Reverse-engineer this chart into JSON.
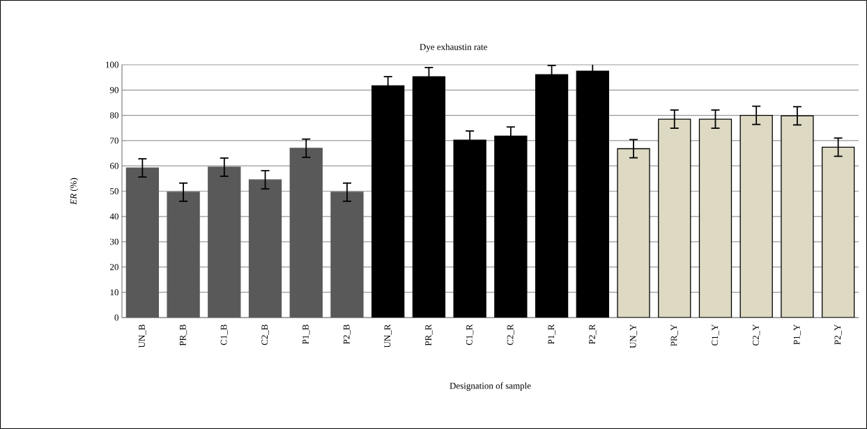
{
  "chart_data": {
    "type": "bar",
    "title": "Dye exhaustin rate",
    "xlabel": "Designation of sample",
    "ylabel": "*ER* (%)",
    "categories": [
      "UN_B",
      "PR_B",
      "C1_B",
      "C2_B",
      "P1_B",
      "P2_B",
      "UN_R",
      "PR_R",
      "C1_R",
      "C2_R",
      "P1_R",
      "P2_R",
      "UN_Y",
      "PR_Y",
      "C1_Y",
      "C2_Y",
      "P1_Y",
      "P2_Y"
    ],
    "values": [
      59.2,
      49.6,
      59.5,
      54.5,
      67,
      49.6,
      91.7,
      95.3,
      70.2,
      71.8,
      96.1,
      97.5,
      66.8,
      78.5,
      78.5,
      80,
      79.8,
      67.4
    ],
    "errors": [
      3.6,
      3.6,
      3.6,
      3.6,
      3.6,
      3.6,
      3.6,
      3.6,
      3.6,
      3.6,
      3.6,
      3.6,
      3.6,
      3.6,
      3.6,
      3.6,
      3.6,
      3.6
    ],
    "colors": [
      "#595959",
      "#595959",
      "#595959",
      "#595959",
      "#595959",
      "#595959",
      "#000000",
      "#000000",
      "#000000",
      "#000000",
      "#000000",
      "#000000",
      "#ddd9c3",
      "#ddd9c3",
      "#ddd9c3",
      "#ddd9c3",
      "#ddd9c3",
      "#ddd9c3"
    ],
    "ylim": [
      0,
      100
    ],
    "yticks": [
      0,
      10,
      20,
      30,
      40,
      50,
      60,
      70,
      80,
      90,
      100
    ],
    "grid": "y"
  }
}
